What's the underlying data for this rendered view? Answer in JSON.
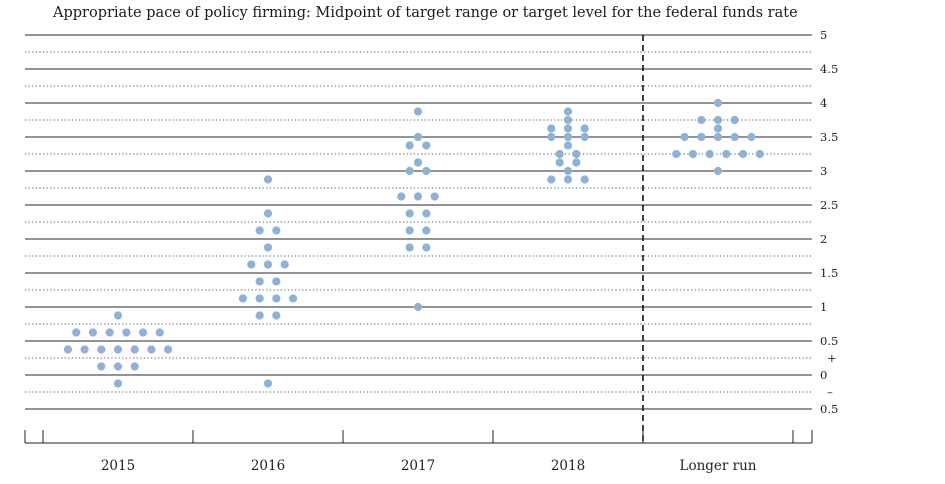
{
  "chart_data": {
    "type": "scatter",
    "title": "Appropriate pace of policy firming: Midpoint of target range or target level for the federal funds rate",
    "categories": [
      "2015",
      "2016",
      "2017",
      "2018",
      "Longer run"
    ],
    "y_ticks": [
      {
        "value": 5,
        "label": "5"
      },
      {
        "value": 4.5,
        "label": "4.5"
      },
      {
        "value": 4,
        "label": "4"
      },
      {
        "value": 3.5,
        "label": "3.5"
      },
      {
        "value": 3,
        "label": "3"
      },
      {
        "value": 2.5,
        "label": "2.5"
      },
      {
        "value": 2,
        "label": "2"
      },
      {
        "value": 1.5,
        "label": "1.5"
      },
      {
        "value": 1,
        "label": "1"
      },
      {
        "value": 0.5,
        "label": "0.5"
      },
      {
        "value": 0,
        "label": "0"
      },
      {
        "value": -0.5,
        "label": "0.5"
      }
    ],
    "sign_labels": {
      "plus": "+",
      "minus": "–"
    },
    "ylim": [
      -0.75,
      5
    ],
    "grid": "solid at whole and half units, dotted between",
    "dot_color": "#8fb1d4",
    "series": [
      {
        "category": "2015",
        "points": [
          {
            "y": 0.875,
            "count": 1
          },
          {
            "y": 0.625,
            "count": 6
          },
          {
            "y": 0.375,
            "count": 7
          },
          {
            "y": 0.125,
            "count": 3
          },
          {
            "y": -0.125,
            "count": 1
          }
        ]
      },
      {
        "category": "2016",
        "points": [
          {
            "y": 2.875,
            "count": 1
          },
          {
            "y": 2.375,
            "count": 1
          },
          {
            "y": 2.125,
            "count": 2
          },
          {
            "y": 1.875,
            "count": 1
          },
          {
            "y": 1.625,
            "count": 3
          },
          {
            "y": 1.375,
            "count": 2
          },
          {
            "y": 1.125,
            "count": 4
          },
          {
            "y": 0.875,
            "count": 2
          },
          {
            "y": -0.125,
            "count": 1
          }
        ]
      },
      {
        "category": "2017",
        "points": [
          {
            "y": 3.875,
            "count": 1
          },
          {
            "y": 3.5,
            "count": 1
          },
          {
            "y": 3.375,
            "count": 2
          },
          {
            "y": 3.125,
            "count": 1
          },
          {
            "y": 3.0,
            "count": 2
          },
          {
            "y": 2.625,
            "count": 3
          },
          {
            "y": 2.375,
            "count": 2
          },
          {
            "y": 2.125,
            "count": 2
          },
          {
            "y": 1.875,
            "count": 2
          },
          {
            "y": 1.0,
            "count": 1
          }
        ]
      },
      {
        "category": "2018",
        "points": [
          {
            "y": 3.875,
            "count": 1
          },
          {
            "y": 3.75,
            "count": 1
          },
          {
            "y": 3.625,
            "count": 3
          },
          {
            "y": 3.5,
            "count": 3
          },
          {
            "y": 3.375,
            "count": 1
          },
          {
            "y": 3.25,
            "count": 2
          },
          {
            "y": 3.125,
            "count": 2
          },
          {
            "y": 3.0,
            "count": 1
          },
          {
            "y": 2.875,
            "count": 3
          }
        ]
      },
      {
        "category": "Longer run",
        "points": [
          {
            "y": 4.0,
            "count": 1
          },
          {
            "y": 3.75,
            "count": 3
          },
          {
            "y": 3.625,
            "count": 1
          },
          {
            "y": 3.5,
            "count": 5
          },
          {
            "y": 3.25,
            "count": 6
          },
          {
            "y": 3.0,
            "count": 1
          }
        ]
      }
    ]
  }
}
